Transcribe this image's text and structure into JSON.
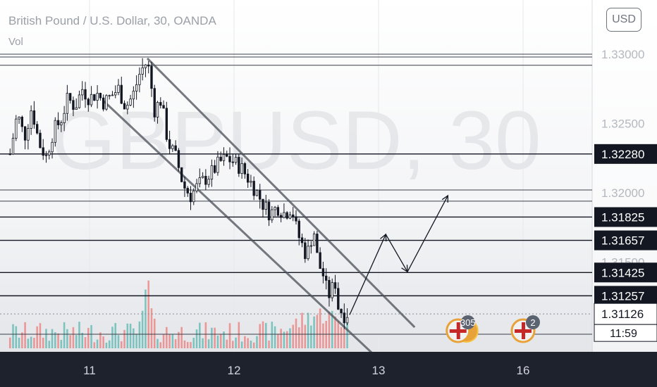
{
  "header": {
    "title": "British Pound / U.S. Dollar, 30, OANDA",
    "indicator": "Vol",
    "currency_button": "USD"
  },
  "watermark": "GBPUSD, 30",
  "chart_data": {
    "type": "candlestick",
    "symbol": "GBPUSD",
    "interval": "30",
    "source": "OANDA",
    "ylim": [
      1.3098,
      1.3336
    ],
    "x_ticks": [
      {
        "label": "11",
        "day": 0
      },
      {
        "label": "12",
        "day": 1
      },
      {
        "label": "13",
        "day": 2
      },
      {
        "label": "16",
        "day": 3
      }
    ],
    "y_ticks": [
      1.33,
      1.325,
      1.32,
      1.315
    ],
    "y_tick_labels": [
      "1.33000",
      "1.32500",
      "1.32000",
      "1.31500"
    ],
    "horizontal_levels": [
      {
        "label": "1.32280",
        "value": 1.3228
      },
      {
        "label": "1.31825",
        "value": 1.31825
      },
      {
        "label": "1.31657",
        "value": 1.31657
      },
      {
        "label": "1.31425",
        "value": 1.31425
      },
      {
        "label": "1.31257",
        "value": 1.31257
      }
    ],
    "unlabeled_levels": [
      1.33,
      1.3298,
      1.3292,
      1.3202,
      1.3194,
      1.3098
    ],
    "current_price": {
      "value": 1.31126,
      "label": "1.31126"
    },
    "countdown": "11:59",
    "price_path": [
      [
        -0.55,
        1.3228
      ],
      [
        -0.5,
        1.3257
      ],
      [
        -0.45,
        1.324
      ],
      [
        -0.4,
        1.3262
      ],
      [
        -0.35,
        1.3236
      ],
      [
        -0.3,
        1.3226
      ],
      [
        -0.25,
        1.3245
      ],
      [
        -0.2,
        1.3252
      ],
      [
        -0.15,
        1.3268
      ],
      [
        -0.1,
        1.3262
      ],
      [
        -0.05,
        1.3275
      ],
      [
        0.0,
        1.3268
      ],
      [
        0.05,
        1.3272
      ],
      [
        0.1,
        1.3265
      ],
      [
        0.15,
        1.327
      ],
      [
        0.2,
        1.3275
      ],
      [
        0.25,
        1.3262
      ],
      [
        0.3,
        1.327
      ],
      [
        0.35,
        1.3287
      ],
      [
        0.4,
        1.3295
      ],
      [
        0.42,
        1.3282
      ],
      [
        0.45,
        1.326
      ],
      [
        0.5,
        1.3268
      ],
      [
        0.52,
        1.3248
      ],
      [
        0.55,
        1.3235
      ],
      [
        0.6,
        1.3225
      ],
      [
        0.65,
        1.3205
      ],
      [
        0.7,
        1.3198
      ],
      [
        0.75,
        1.3205
      ],
      [
        0.8,
        1.321
      ],
      [
        0.85,
        1.3215
      ],
      [
        0.9,
        1.3222
      ],
      [
        0.95,
        1.3225
      ],
      [
        1.0,
        1.3222
      ],
      [
        1.05,
        1.3218
      ],
      [
        1.1,
        1.321
      ],
      [
        1.15,
        1.3202
      ],
      [
        1.2,
        1.3192
      ],
      [
        1.25,
        1.3185
      ],
      [
        1.3,
        1.319
      ],
      [
        1.35,
        1.3185
      ],
      [
        1.4,
        1.319
      ],
      [
        1.42,
        1.3178
      ],
      [
        1.45,
        1.3168
      ],
      [
        1.5,
        1.3155
      ],
      [
        1.52,
        1.316
      ],
      [
        1.55,
        1.3175
      ],
      [
        1.58,
        1.315
      ],
      [
        1.62,
        1.314
      ],
      [
        1.65,
        1.3125
      ],
      [
        1.7,
        1.3135
      ],
      [
        1.72,
        1.3118
      ],
      [
        1.76,
        1.3112
      ],
      [
        1.8,
        1.3114
      ]
    ],
    "projection": [
      [
        1.8,
        1.3112
      ],
      [
        2.05,
        1.317
      ],
      [
        2.2,
        1.3143
      ],
      [
        2.48,
        1.3198
      ]
    ],
    "channel_upper": [
      [
        0.4,
        1.3297
      ],
      [
        2.25,
        1.3103
      ]
    ],
    "channel_lower": [
      [
        0.1,
        1.3266
      ],
      [
        2.0,
        1.308
      ]
    ],
    "volume_note": "volume bars along bottom; peak near day 0.4",
    "event_markers": [
      {
        "flag": "us-uk-flag-icon",
        "count": "305",
        "day": 2.55
      },
      {
        "flag": "uk-flag-icon",
        "count": "2",
        "day": 3.0
      }
    ],
    "colors": {
      "up": "#26a69a",
      "down": "#ef5350",
      "candle": "#131722",
      "level": "#131722"
    }
  }
}
